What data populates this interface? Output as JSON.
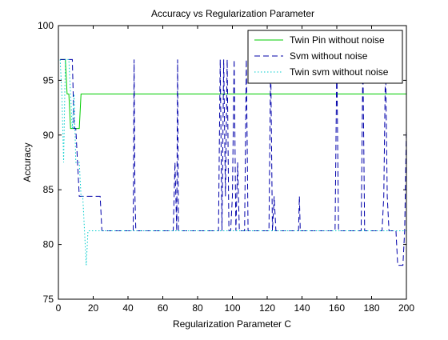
{
  "chart_data": {
    "type": "line",
    "title": "Accuracy vs Regularization Parameter",
    "xlabel": "Regularization Parameter C",
    "ylabel": "Accuracy",
    "xlim": [
      0,
      200
    ],
    "ylim": [
      75,
      100
    ],
    "xticks": [
      "0",
      "20",
      "40",
      "60",
      "80",
      "100",
      "120",
      "140",
      "160",
      "180",
      "200"
    ],
    "yticks": [
      "75",
      "80",
      "85",
      "90",
      "95",
      "100"
    ],
    "grid": false,
    "legend_position": "top-right",
    "series": [
      {
        "name": "Twin Pin without noise",
        "color": "#00cc00",
        "style": "solid",
        "x": [
          1,
          4,
          5,
          6,
          7,
          8,
          9,
          10,
          11,
          12,
          13,
          200
        ],
        "y": [
          96.9,
          96.9,
          93.75,
          93.75,
          90.6,
          90.6,
          90.6,
          90.6,
          90.6,
          90.6,
          93.75,
          93.75
        ]
      },
      {
        "name": "Svm without noise",
        "color": "#0000aa",
        "style": "dashed",
        "x": [
          1,
          7,
          8,
          9,
          10,
          11,
          12,
          13,
          14,
          15,
          20,
          24,
          25,
          26,
          43,
          43.5,
          44,
          44.5,
          45,
          66,
          67,
          68,
          68.5,
          69,
          69.5,
          70,
          92,
          93,
          94,
          95,
          96,
          97,
          98,
          99,
          100,
          101,
          102,
          103,
          104,
          105,
          106,
          107,
          108,
          109,
          110,
          121,
          122,
          123,
          124,
          125,
          126,
          138,
          138.5,
          139,
          159,
          160,
          161,
          162,
          174,
          175,
          176,
          177,
          178,
          186,
          187,
          188,
          189,
          190,
          191,
          192,
          193,
          194,
          195,
          196,
          197,
          198,
          199,
          200
        ],
        "y": [
          96.9,
          96.9,
          96.9,
          90.6,
          90.6,
          87.5,
          84.4,
          84.4,
          84.4,
          84.4,
          84.4,
          84.4,
          81.25,
          81.25,
          81.25,
          96.9,
          84.4,
          81.25,
          81.25,
          81.25,
          87.5,
          81.25,
          96.9,
          81.25,
          81.25,
          81.25,
          81.25,
          96.9,
          81.25,
          96.9,
          84.4,
          96.9,
          81.25,
          81.25,
          84.4,
          96.9,
          81.25,
          87.5,
          81.25,
          81.25,
          81.25,
          81.25,
          96.9,
          81.25,
          81.25,
          81.25,
          96.9,
          81.25,
          84.4,
          81.25,
          81.25,
          81.25,
          84.4,
          81.25,
          81.25,
          96.9,
          81.25,
          81.25,
          81.25,
          96.9,
          81.25,
          81.25,
          81.25,
          81.25,
          84.4,
          96.9,
          84.4,
          81.25,
          81.25,
          81.25,
          81.25,
          81.25,
          78.1,
          78.1,
          78.1,
          78.1,
          81.25,
          90.6
        ]
      },
      {
        "name": "Twin svm without noise",
        "color": "#00cccc",
        "style": "dotted",
        "x": [
          1,
          2,
          3,
          4,
          5,
          6,
          7,
          8,
          9,
          10,
          11,
          12,
          13,
          14,
          15,
          16,
          17,
          18,
          19,
          20,
          200
        ],
        "y": [
          96.9,
          93.75,
          87.5,
          96.9,
          96.9,
          96.9,
          93.75,
          90.6,
          93.75,
          87.5,
          87.5,
          87.5,
          84.4,
          84.4,
          81.25,
          78.1,
          81.25,
          81.25,
          81.25,
          81.25,
          81.25
        ]
      }
    ]
  }
}
